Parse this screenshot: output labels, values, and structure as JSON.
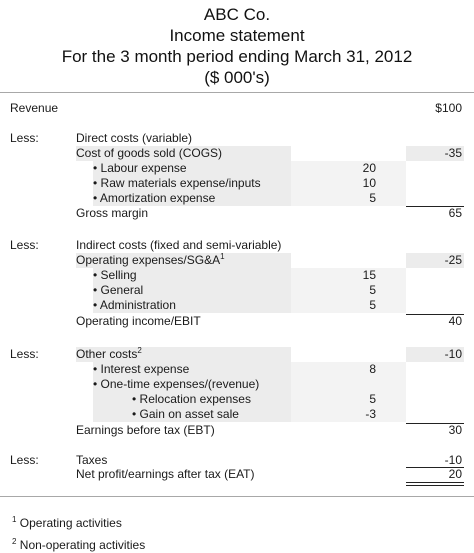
{
  "header": {
    "company": "ABC Co.",
    "title": "Income statement",
    "period": "For the 3 month period ending March 31, 2012",
    "units": "($ 000's)"
  },
  "rows": {
    "revenue": {
      "label": "Revenue",
      "value": "$100"
    },
    "less1": "Less:",
    "direct_costs": "Direct costs (variable)",
    "cogs": {
      "label": "Cost of goods sold (COGS)",
      "value": "-35"
    },
    "labour": {
      "label": "• Labour expense",
      "value": "20"
    },
    "raw_materials": {
      "label": "• Raw materials expense/inputs",
      "value": "10"
    },
    "amortization": {
      "label": "• Amortization expense",
      "value": "5"
    },
    "gross_margin": {
      "label": "Gross margin",
      "value": "65"
    },
    "less2": "Less:",
    "indirect_costs": "Indirect costs (fixed and semi-variable)",
    "opex": {
      "label": "Operating expenses/SG&A",
      "sup": "1",
      "value": "-25"
    },
    "selling": {
      "label": "• Selling",
      "value": "15"
    },
    "general": {
      "label": "• General",
      "value": "5"
    },
    "administration": {
      "label": "• Administration",
      "value": "5"
    },
    "ebit": {
      "label": "Operating income/EBIT",
      "value": "40"
    },
    "less3": "Less:",
    "other_costs": {
      "label": "Other costs",
      "sup": "2",
      "value": "-10"
    },
    "interest": {
      "label": "• Interest expense",
      "value": "8"
    },
    "one_time": {
      "label": "• One-time expenses/(revenue)"
    },
    "relocation": {
      "label": "• Relocation expenses",
      "value": "5"
    },
    "gain_asset": {
      "label": "• Gain on asset sale",
      "value": "-3"
    },
    "ebt": {
      "label": "Earnings before tax (EBT)",
      "value": "30"
    },
    "less4": "Less:",
    "taxes": {
      "label": "Taxes",
      "value": "-10"
    },
    "net_profit": {
      "label": "Net profit/earnings after tax (EAT)",
      "value": "20"
    }
  },
  "footnotes": [
    {
      "sup": "1",
      "text": "Operating activities"
    },
    {
      "sup": "2",
      "text": "Non-operating activities"
    }
  ]
}
